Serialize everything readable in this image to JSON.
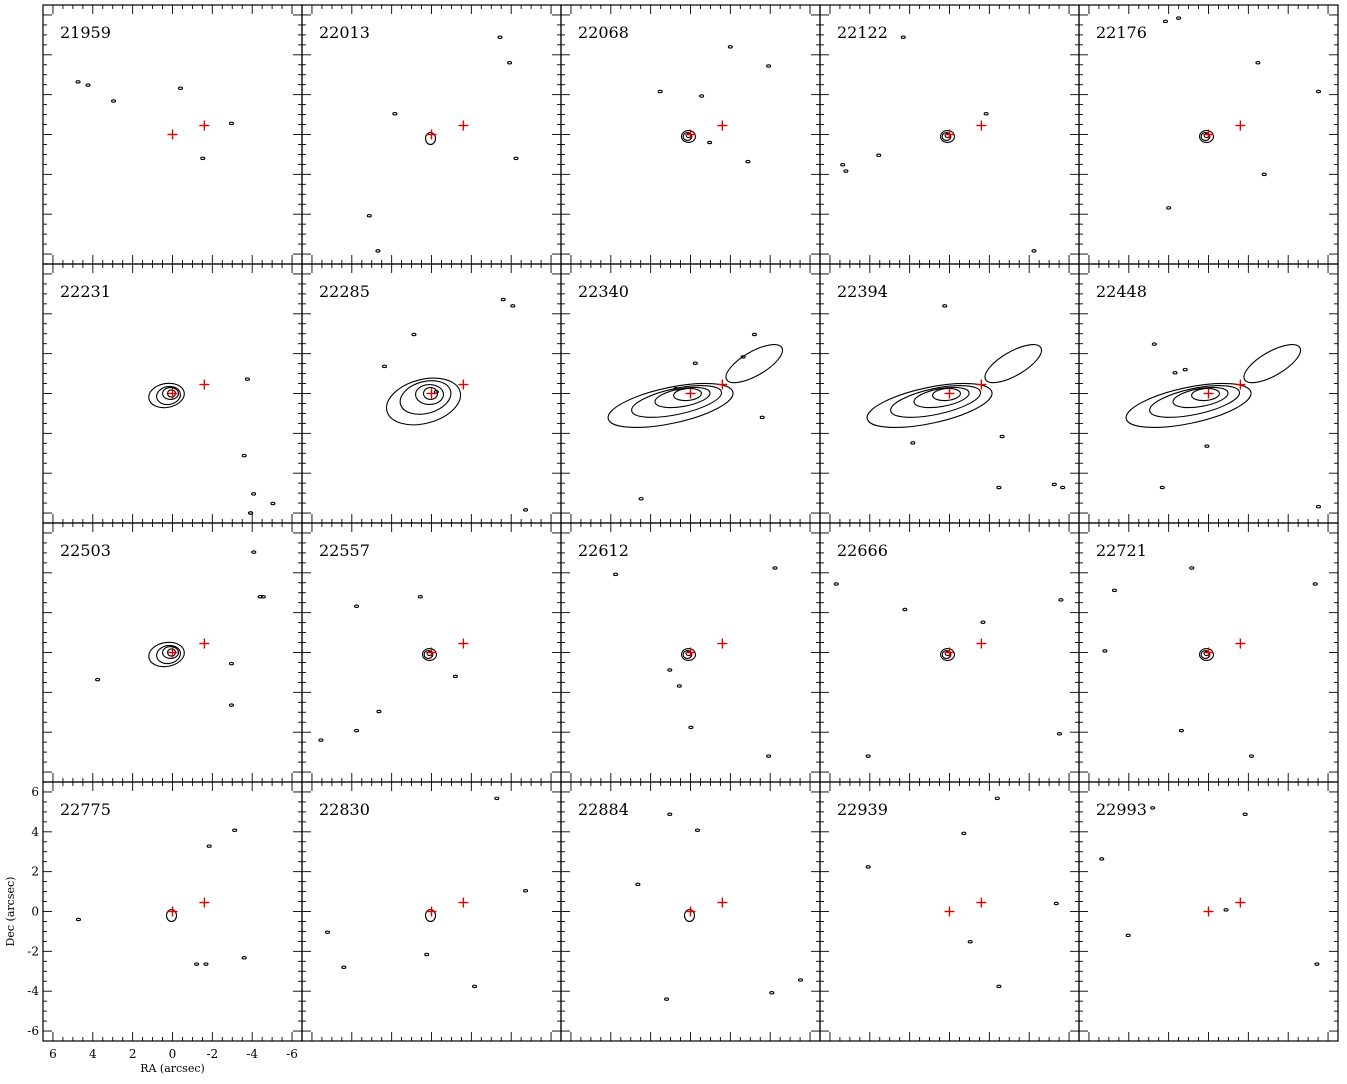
{
  "chart_data": {
    "type": "contour-grid",
    "xlabel": "RA (arcsec)",
    "ylabel": "Dec (arcsec)",
    "xlim": [
      6.5,
      -6.5
    ],
    "ylim": [
      -6.5,
      6.5
    ],
    "x_ticks": [
      6,
      4,
      2,
      0,
      -2,
      -4,
      -6
    ],
    "y_ticks": [
      6,
      4,
      2,
      0,
      -2,
      -4,
      -6
    ],
    "x_tick_labels": [
      "6",
      "4",
      "2",
      "0",
      "-2",
      "-4",
      "-6"
    ],
    "y_tick_labels": [
      "6",
      "4",
      "2",
      "0",
      "-2",
      "-4",
      "-6"
    ],
    "grid": false,
    "rows": 4,
    "columns": 5,
    "markers": [
      {
        "ra": 0.0,
        "dec": 0.0,
        "color": "#e00000",
        "symbol": "cross"
      },
      {
        "ra": -1.6,
        "dec": 0.45,
        "color": "#e00000",
        "symbol": "cross"
      }
    ],
    "panels": [
      {
        "label": "21959",
        "emission": "none"
      },
      {
        "label": "22013",
        "emission": "weak"
      },
      {
        "label": "22068",
        "emission": "compact"
      },
      {
        "label": "22122",
        "emission": "compact"
      },
      {
        "label": "22176",
        "emission": "compact"
      },
      {
        "label": "22231",
        "emission": "compact-extended"
      },
      {
        "label": "22285",
        "emission": "extended"
      },
      {
        "label": "22340",
        "emission": "extended-elongated"
      },
      {
        "label": "22394",
        "emission": "extended-elongated"
      },
      {
        "label": "22448",
        "emission": "extended-elongated"
      },
      {
        "label": "22503",
        "emission": "compact-extended"
      },
      {
        "label": "22557",
        "emission": "compact"
      },
      {
        "label": "22612",
        "emission": "compact"
      },
      {
        "label": "22666",
        "emission": "compact"
      },
      {
        "label": "22721",
        "emission": "compact"
      },
      {
        "label": "22775",
        "emission": "weak"
      },
      {
        "label": "22830",
        "emission": "weak"
      },
      {
        "label": "22884",
        "emission": "weak"
      },
      {
        "label": "22939",
        "emission": "none"
      },
      {
        "label": "22993",
        "emission": "none"
      }
    ]
  }
}
